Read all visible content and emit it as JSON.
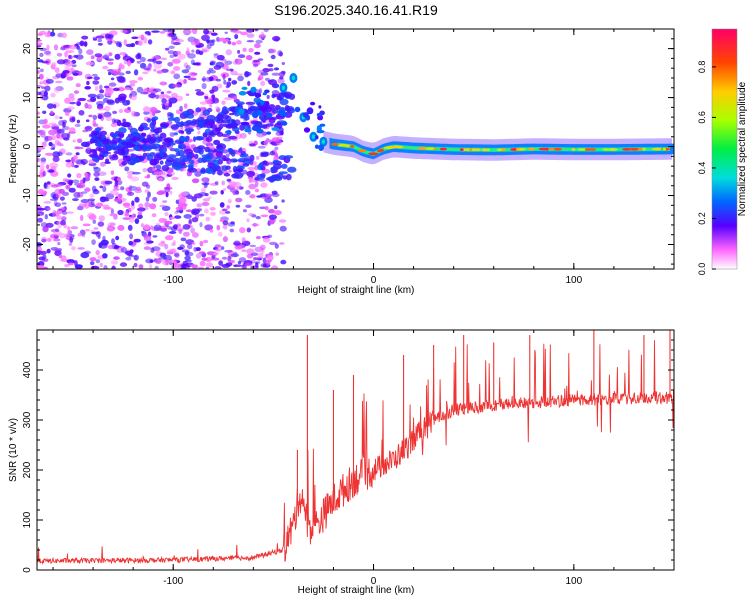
{
  "title": "S196.2025.340.16.41.R19",
  "colors": {
    "snr_line": "#ee3333",
    "frame": "#000000",
    "background": "#ffffff"
  },
  "chart_data": [
    {
      "type": "heatmap",
      "title": "S196.2025.340.16.41.R19",
      "xlabel": "Height of straight line (km)",
      "ylabel": "Frequency (Hz)",
      "xlim": [
        -168,
        150
      ],
      "ylim": [
        -25,
        24
      ],
      "x_ticks": [
        -100,
        0,
        100
      ],
      "x_tick_labels": [
        "-100",
        "0",
        "100"
      ],
      "y_ticks": [
        -20,
        -10,
        0,
        10,
        20
      ],
      "y_tick_labels": [
        "-20",
        "-10",
        "0",
        "10",
        "20"
      ],
      "colorbar": {
        "label": "Normalized spectral amplitude",
        "range": [
          0,
          0.95
        ],
        "ticks": [
          0.0,
          0.2,
          0.4,
          0.6,
          0.8
        ],
        "tick_labels": [
          "0.0",
          "0.2",
          "0.4",
          "0.6",
          "0.8"
        ]
      },
      "noise_region_x": [
        -168,
        -55
      ],
      "carrier_trace": [
        {
          "x": -45,
          "freq": 12,
          "amp": 0.3
        },
        {
          "x": -40,
          "freq": 14,
          "amp": 0.35
        },
        {
          "x": -35,
          "freq": 6,
          "amp": 0.25
        },
        {
          "x": -30,
          "freq": 2,
          "amp": 0.3
        },
        {
          "x": -25,
          "freq": 1,
          "amp": 0.4
        },
        {
          "x": -20,
          "freq": 0.5,
          "amp": 0.5
        },
        {
          "x": -10,
          "freq": 0,
          "amp": 0.55
        },
        {
          "x": -5,
          "freq": -1,
          "amp": 0.6
        },
        {
          "x": 0,
          "freq": -1.5,
          "amp": 0.55
        },
        {
          "x": 5,
          "freq": -0.5,
          "amp": 0.6
        },
        {
          "x": 10,
          "freq": 0,
          "amp": 0.6
        },
        {
          "x": 20,
          "freq": -0.3,
          "amp": 0.55
        },
        {
          "x": 40,
          "freq": -0.6,
          "amp": 0.55
        },
        {
          "x": 60,
          "freq": -0.7,
          "amp": 0.55
        },
        {
          "x": 80,
          "freq": -0.5,
          "amp": 0.55
        },
        {
          "x": 100,
          "freq": -0.6,
          "amp": 0.55
        },
        {
          "x": 120,
          "freq": -0.6,
          "amp": 0.55
        },
        {
          "x": 150,
          "freq": -0.5,
          "amp": 0.55
        }
      ]
    },
    {
      "type": "line",
      "xlabel": "Height of straight line (km)",
      "ylabel": "SNR (10 * v/v)",
      "xlim": [
        -168,
        150
      ],
      "ylim": [
        0,
        480
      ],
      "x_ticks": [
        -100,
        0,
        100
      ],
      "x_tick_labels": [
        "-100",
        "0",
        "100"
      ],
      "y_ticks": [
        0,
        100,
        200,
        300,
        400
      ],
      "y_tick_labels": [
        "0",
        "100",
        "200",
        "300",
        "400"
      ],
      "series": [
        {
          "name": "SNR",
          "baseline_x": [
            -168,
            -100,
            -60,
            -45,
            -40,
            -37,
            -35,
            -33,
            -30,
            -25,
            -20,
            -10,
            0,
            10,
            20,
            30,
            40,
            60,
            80,
            100,
            120,
            150
          ],
          "baseline_y": [
            18,
            20,
            25,
            40,
            90,
            150,
            140,
            90,
            80,
            110,
            140,
            180,
            200,
            220,
            260,
            300,
            320,
            330,
            335,
            340,
            342,
            345
          ],
          "peaks": [
            {
              "x": -33,
              "y": 470
            },
            {
              "x": -38,
              "y": 240
            },
            {
              "x": -20,
              "y": 360
            },
            {
              "x": -10,
              "y": 390
            },
            {
              "x": 15,
              "y": 430
            },
            {
              "x": 30,
              "y": 450
            },
            {
              "x": 45,
              "y": 470
            },
            {
              "x": 60,
              "y": 455
            },
            {
              "x": 78,
              "y": 470
            },
            {
              "x": 110,
              "y": 480
            },
            {
              "x": 135,
              "y": 470
            },
            {
              "x": 148,
              "y": 480
            }
          ]
        }
      ]
    }
  ]
}
